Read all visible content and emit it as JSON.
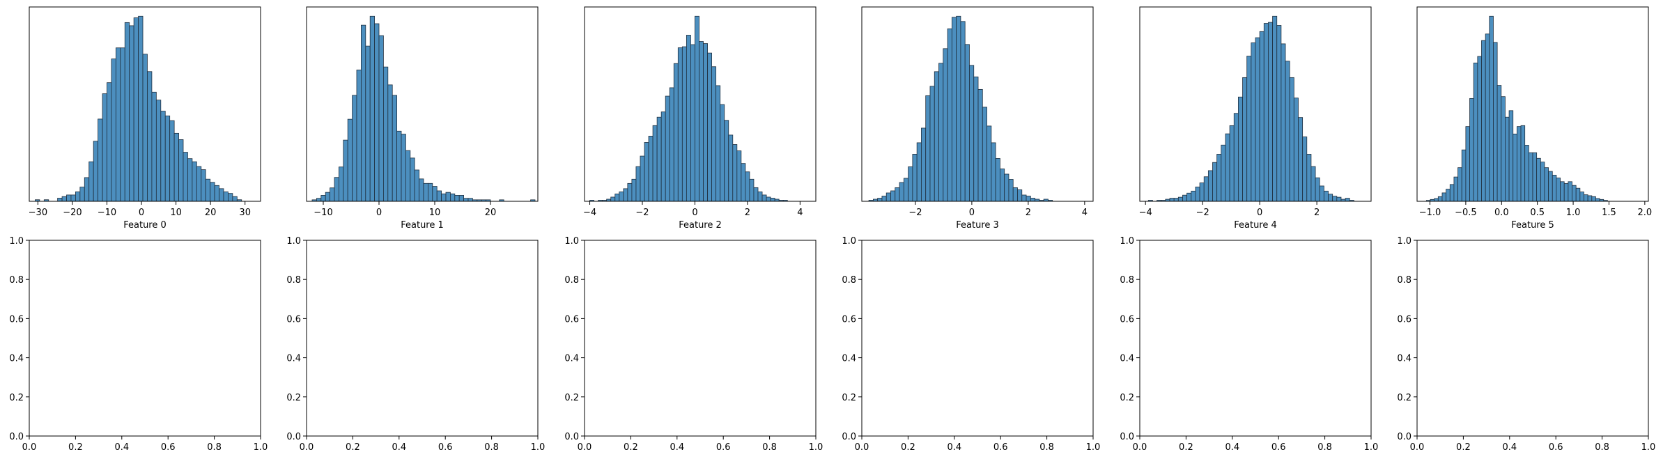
{
  "chart_data": [
    {
      "type": "bar",
      "panel": "histogram",
      "xlabel": "Feature 0",
      "xticks": [
        "−30",
        "−20",
        "−10",
        "0",
        "10",
        "20",
        "30"
      ],
      "xtick_values": [
        -30,
        -20,
        -10,
        0,
        10,
        20,
        30
      ],
      "xlim": [
        -32.5,
        34.5
      ],
      "bin_start": -30.8,
      "bin_width": 1.3,
      "values": [
        1,
        0,
        1,
        0,
        0,
        2,
        3,
        4,
        4,
        6,
        9,
        15,
        25,
        38,
        52,
        68,
        75,
        90,
        97,
        97,
        113,
        111,
        116,
        117,
        93,
        82,
        69,
        64,
        57,
        54,
        51,
        43,
        39,
        31,
        27,
        25,
        22,
        20,
        14,
        12,
        10,
        8,
        6,
        5,
        3,
        1
      ]
    },
    {
      "type": "bar",
      "panel": "histogram",
      "xlabel": "Feature 1",
      "xticks": [
        "−10",
        "0",
        "10",
        "20"
      ],
      "xtick_values": [
        -10,
        0,
        10,
        20
      ],
      "xlim": [
        -13,
        28.5
      ],
      "bin_start": -12,
      "bin_width": 0.8,
      "values": [
        1,
        2,
        4,
        6,
        9,
        16,
        23,
        41,
        55,
        71,
        88,
        118,
        104,
        124,
        119,
        111,
        90,
        78,
        71,
        47,
        45,
        34,
        29,
        21,
        15,
        12,
        12,
        10,
        7,
        5,
        6,
        5,
        4,
        4,
        2,
        2,
        1,
        1,
        1,
        1,
        0,
        0,
        1,
        0,
        0,
        0,
        0,
        0,
        0,
        1
      ]
    },
    {
      "type": "bar",
      "panel": "histogram",
      "xlabel": "Feature 2",
      "xticks": [
        "−4",
        "−2",
        "0",
        "2",
        "4"
      ],
      "xtick_values": [
        -4,
        -2,
        0,
        2,
        4
      ],
      "xlim": [
        -4.2,
        4.6
      ],
      "bin_start": -4.0,
      "bin_width": 0.16,
      "values": [
        1,
        0,
        1,
        1,
        2,
        4,
        7,
        9,
        12,
        17,
        21,
        33,
        43,
        56,
        62,
        72,
        80,
        85,
        100,
        108,
        131,
        146,
        147,
        158,
        149,
        176,
        152,
        150,
        141,
        128,
        110,
        92,
        77,
        63,
        54,
        48,
        36,
        28,
        21,
        13,
        9,
        6,
        4,
        3,
        2,
        1,
        1
      ]
    },
    {
      "type": "bar",
      "panel": "histogram",
      "xlabel": "Feature 3",
      "xticks": [
        "−2",
        "0",
        "2",
        "4"
      ],
      "xtick_values": [
        -2,
        0,
        2,
        4
      ],
      "xlim": [
        -3.9,
        4.3
      ],
      "bin_start": -3.65,
      "bin_width": 0.155,
      "values": [
        1,
        2,
        3,
        5,
        8,
        10,
        13,
        18,
        22,
        33,
        45,
        56,
        70,
        101,
        110,
        124,
        132,
        146,
        165,
        176,
        177,
        172,
        150,
        130,
        119,
        107,
        90,
        72,
        56,
        41,
        31,
        26,
        21,
        13,
        11,
        6,
        5,
        3,
        2,
        1,
        2,
        1
      ]
    },
    {
      "type": "bar",
      "panel": "histogram",
      "xlabel": "Feature 4",
      "xticks": [
        "−4",
        "−2",
        "0",
        "2"
      ],
      "xtick_values": [
        -4,
        -2,
        0,
        2
      ],
      "xlim": [
        -4.2,
        3.9
      ],
      "bin_start": -3.9,
      "bin_width": 0.15,
      "values": [
        1,
        0,
        1,
        1,
        2,
        3,
        3,
        4,
        6,
        8,
        10,
        14,
        18,
        24,
        30,
        38,
        46,
        55,
        66,
        74,
        86,
        102,
        121,
        142,
        155,
        160,
        166,
        174,
        175,
        181,
        172,
        154,
        137,
        121,
        101,
        82,
        63,
        46,
        34,
        23,
        15,
        10,
        7,
        5,
        4,
        2,
        3,
        1
      ]
    },
    {
      "type": "bar",
      "panel": "histogram",
      "xlabel": "Feature 5",
      "xticks": [
        "−1.0",
        "−0.5",
        "0.0",
        "0.5",
        "1.0",
        "1.5",
        "2.0"
      ],
      "xtick_values": [
        -1,
        -0.5,
        0,
        0.5,
        1,
        1.5,
        2
      ],
      "xlim": [
        -1.18,
        2.05
      ],
      "bin_start": -1.05,
      "bin_width": 0.055,
      "values": [
        1,
        2,
        3,
        5,
        9,
        13,
        18,
        26,
        36,
        55,
        80,
        110,
        148,
        155,
        172,
        179,
        198,
        170,
        124,
        112,
        90,
        97,
        72,
        80,
        81,
        60,
        52,
        52,
        46,
        42,
        36,
        32,
        28,
        25,
        21,
        19,
        21,
        17,
        14,
        10,
        7,
        6,
        5,
        3,
        2,
        1
      ]
    },
    {
      "type": "scatter",
      "panel": "empty",
      "x": [],
      "y": [],
      "xlim": [
        0,
        1
      ],
      "ylim": [
        0,
        1
      ],
      "xticks": [
        "0.0",
        "0.2",
        "0.4",
        "0.6",
        "0.8",
        "1.0"
      ],
      "yticks": [
        "0.0",
        "0.2",
        "0.4",
        "0.6",
        "0.8",
        "1.0"
      ]
    },
    {
      "type": "scatter",
      "panel": "empty",
      "x": [],
      "y": [],
      "xlim": [
        0,
        1
      ],
      "ylim": [
        0,
        1
      ],
      "xticks": [
        "0.0",
        "0.2",
        "0.4",
        "0.6",
        "0.8",
        "1.0"
      ],
      "yticks": [
        "0.0",
        "0.2",
        "0.4",
        "0.6",
        "0.8",
        "1.0"
      ]
    },
    {
      "type": "scatter",
      "panel": "empty",
      "x": [],
      "y": [],
      "xlim": [
        0,
        1
      ],
      "ylim": [
        0,
        1
      ],
      "xticks": [
        "0.0",
        "0.2",
        "0.4",
        "0.6",
        "0.8",
        "1.0"
      ],
      "yticks": [
        "0.0",
        "0.2",
        "0.4",
        "0.6",
        "0.8",
        "1.0"
      ]
    },
    {
      "type": "scatter",
      "panel": "empty",
      "x": [],
      "y": [],
      "xlim": [
        0,
        1
      ],
      "ylim": [
        0,
        1
      ],
      "xticks": [
        "0.0",
        "0.2",
        "0.4",
        "0.6",
        "0.8",
        "1.0"
      ],
      "yticks": [
        "0.0",
        "0.2",
        "0.4",
        "0.6",
        "0.8",
        "1.0"
      ]
    },
    {
      "type": "scatter",
      "panel": "empty",
      "x": [],
      "y": [],
      "xlim": [
        0,
        1
      ],
      "ylim": [
        0,
        1
      ],
      "xticks": [
        "0.0",
        "0.2",
        "0.4",
        "0.6",
        "0.8",
        "1.0"
      ],
      "yticks": [
        "0.0",
        "0.2",
        "0.4",
        "0.6",
        "0.8",
        "1.0"
      ]
    },
    {
      "type": "scatter",
      "panel": "empty",
      "x": [],
      "y": [],
      "xlim": [
        0,
        1
      ],
      "ylim": [
        0,
        1
      ],
      "xticks": [
        "0.0",
        "0.2",
        "0.4",
        "0.6",
        "0.8",
        "1.0"
      ],
      "yticks": [
        "0.0",
        "0.2",
        "0.4",
        "0.6",
        "0.8",
        "1.0"
      ]
    }
  ],
  "colors": {
    "bar_fill": "#4c8fbf",
    "bar_edge": "#1f2f3f"
  }
}
